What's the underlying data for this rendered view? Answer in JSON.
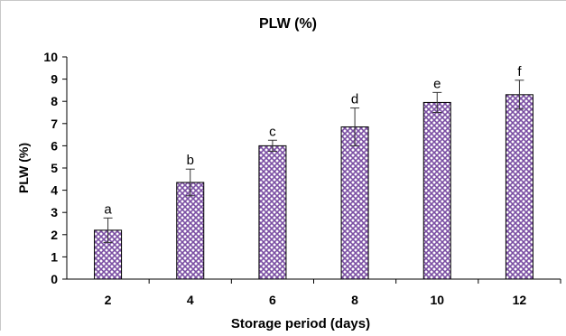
{
  "chart_data": {
    "type": "bar",
    "title": "PLW (%)",
    "xlabel": "Storage period (days)",
    "ylabel": "PLW (%)",
    "categories": [
      "2",
      "4",
      "6",
      "8",
      "10",
      "12"
    ],
    "values": [
      2.2,
      4.35,
      6.0,
      6.85,
      7.95,
      8.3
    ],
    "errors": [
      0.55,
      0.6,
      0.25,
      0.85,
      0.45,
      0.65
    ],
    "significance_letters": [
      "a",
      "b",
      "c",
      "d",
      "e",
      "f"
    ],
    "ylim": [
      0,
      10
    ],
    "yticks": [
      "0",
      "1",
      "2",
      "3",
      "4",
      "5",
      "6",
      "7",
      "8",
      "9",
      "10"
    ],
    "grid": false,
    "legend": "none",
    "bar_color": "#7b4fa3",
    "bar_pattern": "diamond-crosshatch"
  }
}
